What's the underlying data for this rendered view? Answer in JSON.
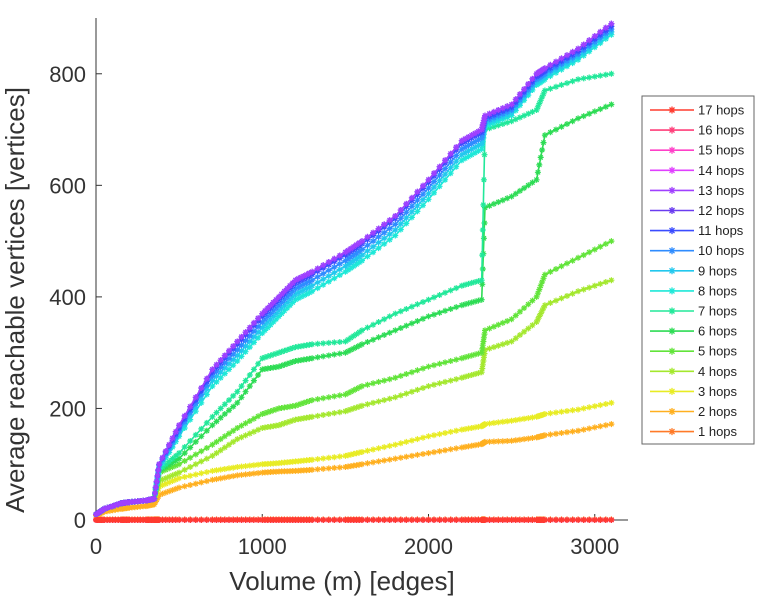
{
  "chart_data": {
    "type": "line",
    "xlabel": "Volume (m) [edges]",
    "ylabel": "Average reachable vertices [vertices]",
    "xlim": [
      0,
      3200
    ],
    "ylim": [
      0,
      900
    ],
    "xticks": [
      0,
      1000,
      2000,
      3000
    ],
    "yticks": [
      0,
      200,
      400,
      600,
      800
    ],
    "grid": false,
    "legend_position": "right",
    "marker": "star",
    "x": [
      0,
      50,
      150,
      200,
      300,
      350,
      380,
      500,
      700,
      850,
      1000,
      1100,
      1200,
      1300,
      1500,
      1600,
      1800,
      2000,
      2200,
      2320,
      2340,
      2500,
      2650,
      2700,
      2900,
      3100
    ],
    "series": [
      {
        "name": "17 hops",
        "color": "#ff3b2f",
        "values": [
          0,
          0,
          0,
          0,
          0,
          0,
          0,
          0,
          0,
          0,
          0,
          0,
          0,
          0,
          0,
          0,
          0,
          0,
          0,
          0,
          0,
          0,
          0,
          0,
          0,
          0
        ]
      },
      {
        "name": "16 hops",
        "color": "#ff3f7a",
        "values": [
          0,
          0,
          0,
          0,
          0,
          0,
          0,
          0,
          0,
          0,
          0,
          0,
          0,
          0,
          0,
          0,
          0,
          0,
          0,
          0,
          0,
          0,
          0,
          0,
          0,
          0
        ]
      },
      {
        "name": "15 hops",
        "color": "#ff40c8",
        "values": [
          0,
          0,
          0,
          0,
          0,
          0,
          0,
          0,
          0,
          0,
          0,
          0,
          0,
          0,
          0,
          0,
          0,
          0,
          0,
          0,
          0,
          0,
          0,
          0,
          0,
          0
        ]
      },
      {
        "name": "14 hops",
        "color": "#e040ff",
        "values": [
          0,
          0,
          0,
          0,
          0,
          0,
          0,
          0,
          0,
          0,
          0,
          0,
          0,
          0,
          0,
          0,
          0,
          0,
          0,
          0,
          0,
          0,
          0,
          0,
          0,
          0
        ]
      },
      {
        "name": "13 hops",
        "color": "#a040ff",
        "values": [
          10,
          20,
          30,
          32,
          35,
          38,
          100,
          170,
          270,
          320,
          370,
          400,
          430,
          445,
          480,
          500,
          545,
          610,
          680,
          700,
          725,
          745,
          800,
          810,
          845,
          890
        ]
      },
      {
        "name": "12 hops",
        "color": "#6a3cf0",
        "values": [
          10,
          20,
          30,
          32,
          35,
          38,
          100,
          170,
          270,
          320,
          370,
          400,
          430,
          445,
          480,
          500,
          545,
          610,
          680,
          700,
          725,
          745,
          800,
          810,
          845,
          890
        ]
      },
      {
        "name": "11 hops",
        "color": "#3a4cff",
        "values": [
          10,
          20,
          30,
          32,
          35,
          38,
          100,
          165,
          265,
          315,
          365,
          395,
          425,
          440,
          475,
          495,
          540,
          605,
          675,
          695,
          720,
          740,
          795,
          805,
          840,
          885
        ]
      },
      {
        "name": "10 hops",
        "color": "#2f8cff",
        "values": [
          10,
          20,
          30,
          32,
          35,
          38,
          98,
          160,
          258,
          305,
          355,
          385,
          415,
          430,
          465,
          485,
          530,
          595,
          665,
          685,
          715,
          735,
          790,
          800,
          835,
          880
        ]
      },
      {
        "name": "9 hops",
        "color": "#22c8ee",
        "values": [
          10,
          20,
          30,
          32,
          35,
          38,
          95,
          155,
          250,
          295,
          345,
          375,
          405,
          420,
          455,
          475,
          520,
          585,
          655,
          675,
          710,
          730,
          785,
          795,
          830,
          875
        ]
      },
      {
        "name": "8 hops",
        "color": "#1ee8d8",
        "values": [
          10,
          20,
          30,
          32,
          35,
          38,
          92,
          150,
          240,
          285,
          335,
          365,
          395,
          410,
          445,
          465,
          510,
          575,
          645,
          665,
          705,
          725,
          780,
          790,
          825,
          870
        ]
      },
      {
        "name": "7 hops",
        "color": "#22e89a",
        "values": [
          10,
          20,
          30,
          32,
          35,
          38,
          90,
          120,
          185,
          230,
          290,
          300,
          310,
          315,
          320,
          340,
          370,
          395,
          420,
          430,
          700,
          715,
          735,
          770,
          790,
          800
        ]
      },
      {
        "name": "6 hops",
        "color": "#2edc55",
        "values": [
          10,
          20,
          30,
          32,
          35,
          38,
          88,
          110,
          170,
          210,
          270,
          275,
          285,
          290,
          300,
          315,
          340,
          365,
          385,
          395,
          560,
          580,
          610,
          690,
          720,
          745
        ]
      },
      {
        "name": "5 hops",
        "color": "#62e43a",
        "values": [
          10,
          20,
          30,
          32,
          35,
          38,
          85,
          100,
          135,
          165,
          190,
          200,
          205,
          215,
          225,
          240,
          255,
          275,
          290,
          300,
          340,
          360,
          400,
          440,
          470,
          500
        ]
      },
      {
        "name": "4 hops",
        "color": "#a4e82e",
        "values": [
          10,
          20,
          30,
          32,
          35,
          38,
          70,
          85,
          115,
          145,
          165,
          170,
          180,
          185,
          195,
          205,
          220,
          240,
          255,
          265,
          305,
          320,
          355,
          385,
          410,
          430
        ]
      },
      {
        "name": "3 hops",
        "color": "#e8ec24",
        "values": [
          10,
          20,
          30,
          32,
          35,
          38,
          60,
          75,
          88,
          95,
          100,
          102,
          105,
          108,
          115,
          122,
          135,
          150,
          162,
          168,
          172,
          178,
          185,
          190,
          198,
          210
        ]
      },
      {
        "name": "2 hops",
        "color": "#ffb020",
        "values": [
          8,
          15,
          20,
          22,
          25,
          28,
          45,
          58,
          72,
          80,
          85,
          87,
          88,
          90,
          95,
          100,
          110,
          120,
          130,
          136,
          140,
          142,
          148,
          152,
          160,
          172
        ]
      },
      {
        "name": "1 hops",
        "color": "#ff7a28",
        "values": [
          1,
          1,
          1,
          1,
          1,
          1,
          1,
          1,
          1,
          1,
          1,
          1,
          1,
          1,
          1,
          1,
          1,
          1,
          1,
          1,
          1,
          1,
          1,
          1,
          1,
          1
        ]
      }
    ]
  }
}
